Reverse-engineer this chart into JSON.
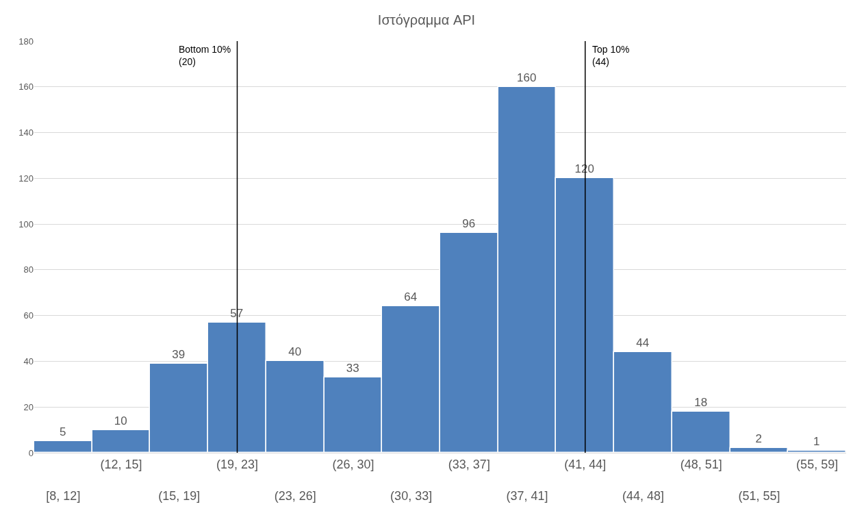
{
  "chart_data": {
    "type": "bar",
    "title": "Ιστόγραμμα API",
    "categories": [
      "[8, 12]",
      "(12, 15]",
      "(15, 19]",
      "(19, 23]",
      "(23, 26]",
      "(26, 30]",
      "(30, 33]",
      "(33, 37]",
      "(37, 41]",
      "(41, 44]",
      "(44, 48]",
      "(48, 51]",
      "(51, 55]",
      "(55, 59]"
    ],
    "values": [
      5,
      10,
      39,
      57,
      40,
      33,
      64,
      96,
      160,
      120,
      44,
      18,
      2,
      1
    ],
    "color": "#4f81bd",
    "ylim": [
      0,
      180
    ],
    "yticks": [
      0,
      20,
      40,
      60,
      80,
      100,
      120,
      140,
      160,
      180
    ],
    "grid": "y",
    "data_labels": true,
    "legend": false,
    "ref_lines": [
      {
        "axis": "x",
        "value": "(19, 23]",
        "label": "Bottom 10%\n(20)",
        "color": "#000000"
      },
      {
        "axis": "x",
        "value": "(41, 44]",
        "label": "Top 10%\n(44)",
        "color": "#000000"
      }
    ]
  }
}
